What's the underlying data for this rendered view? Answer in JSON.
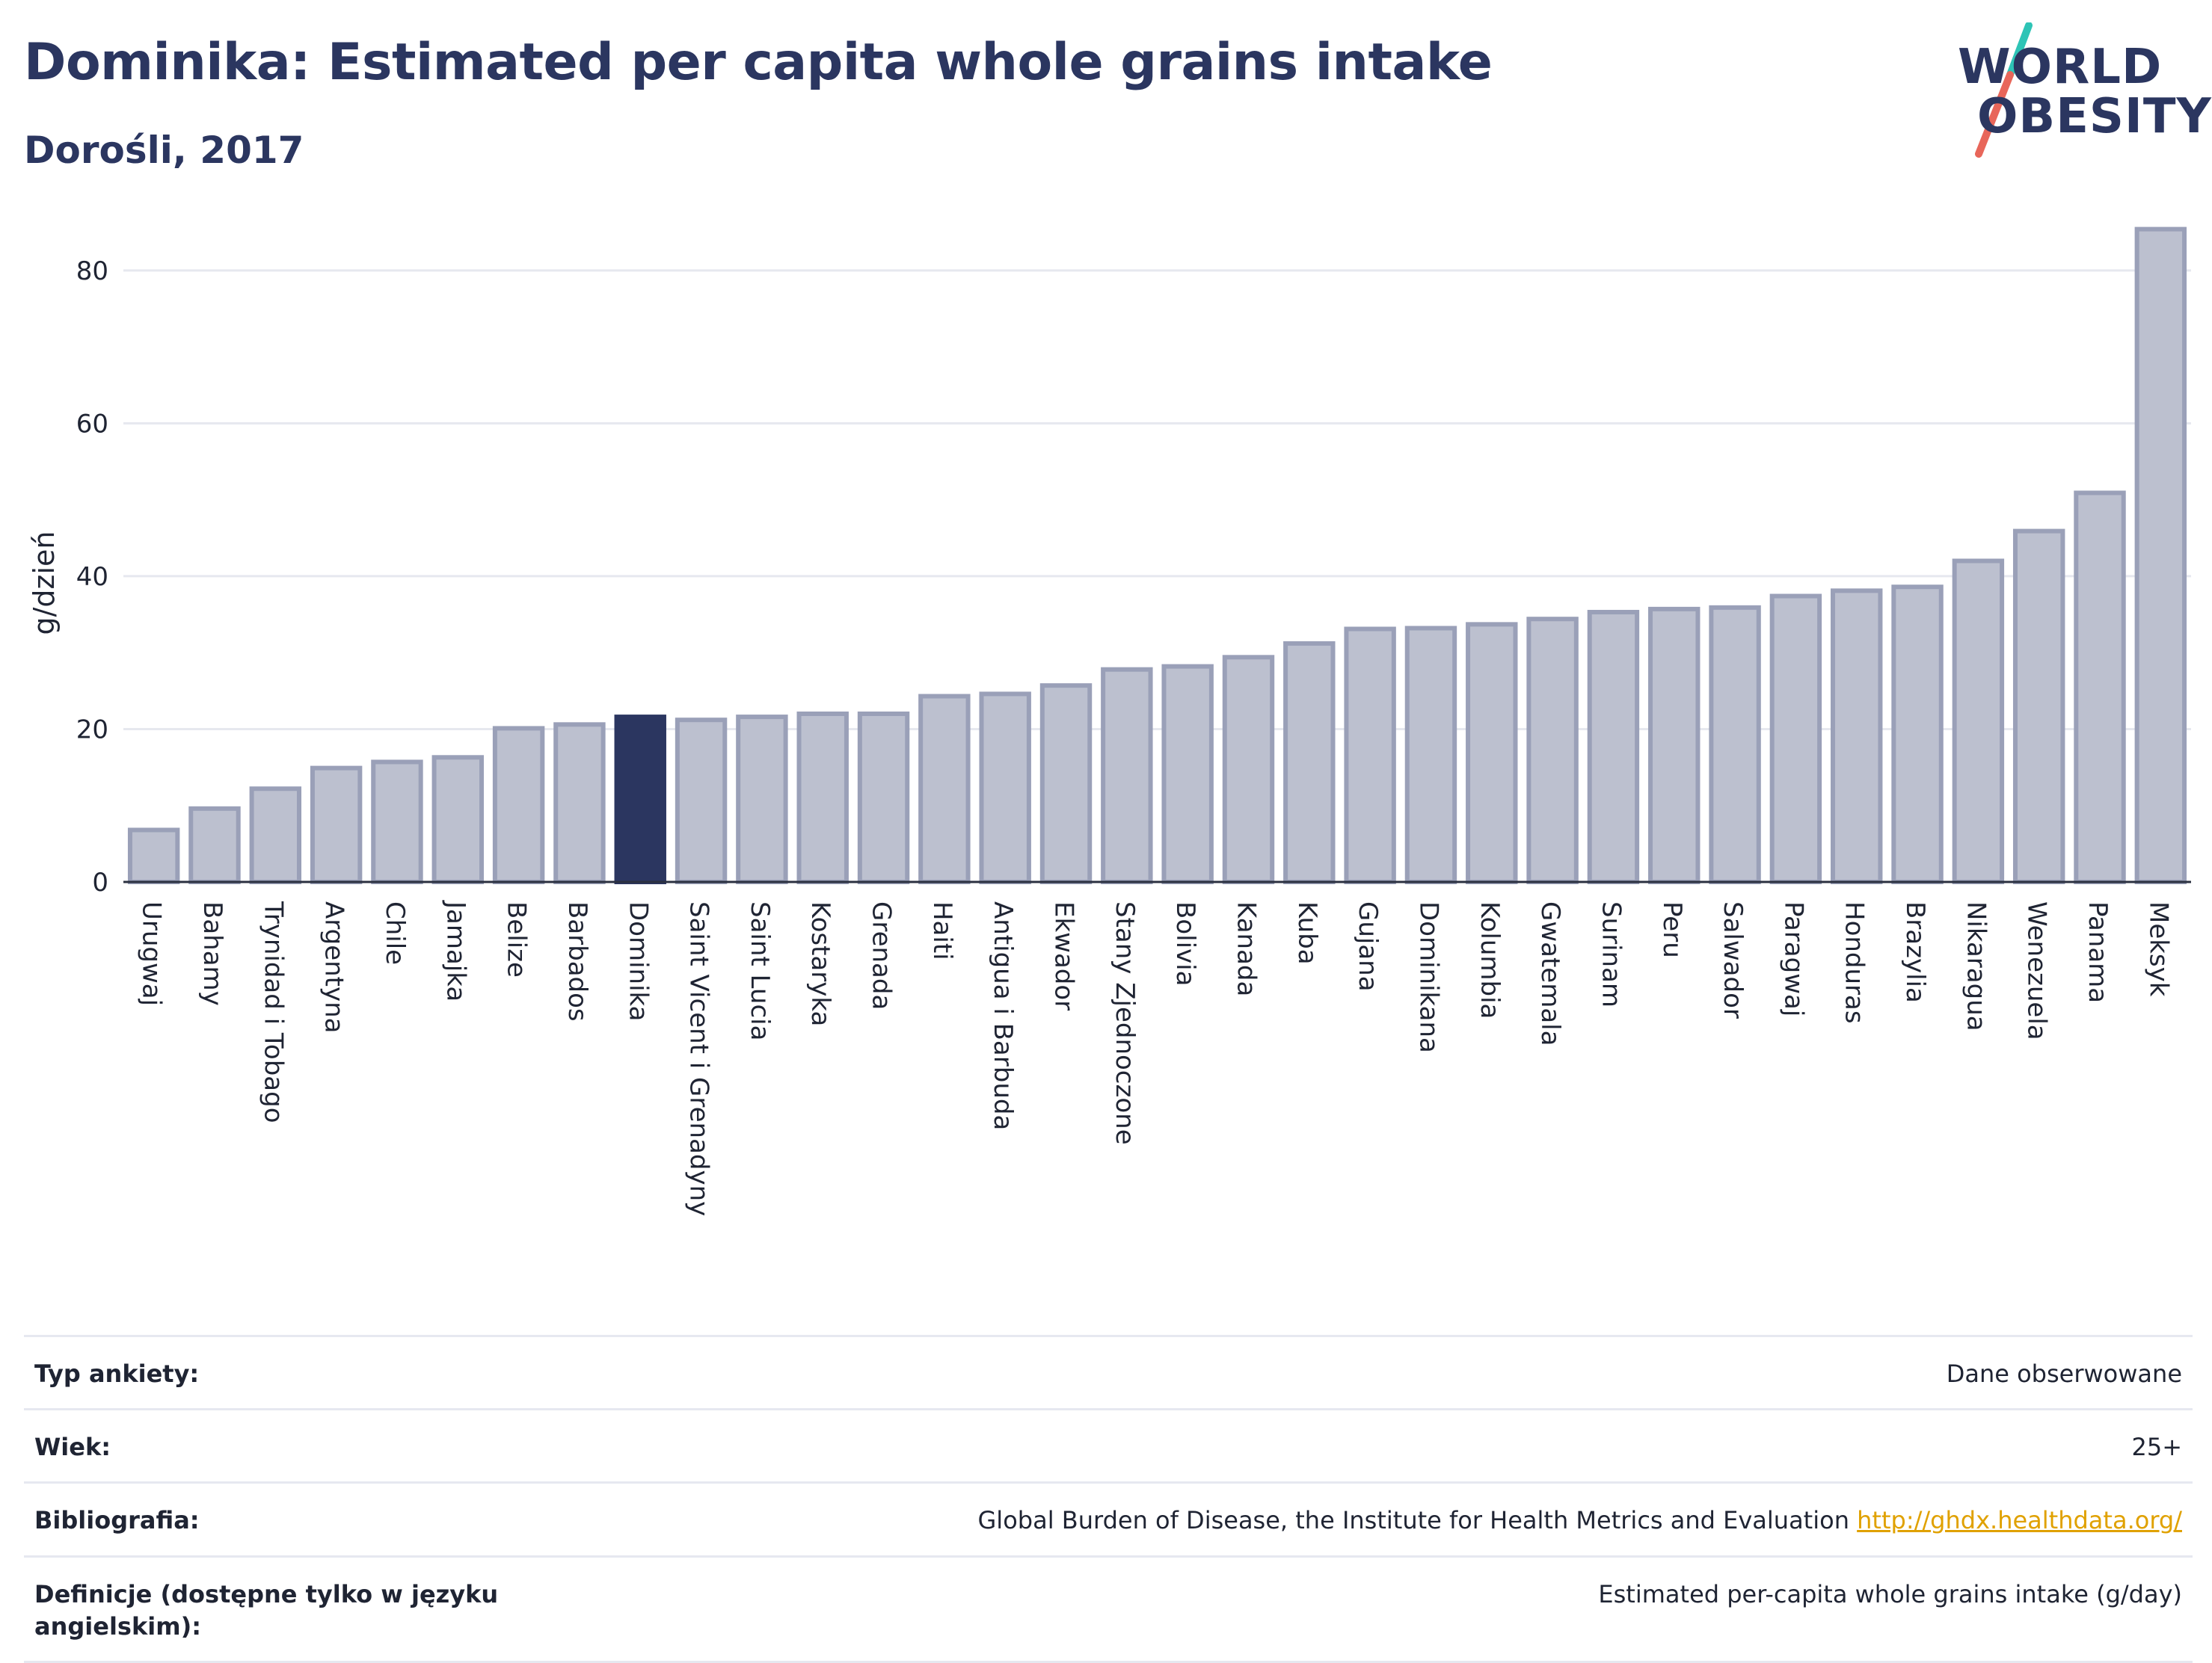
{
  "header": {
    "title": "Dominika: Estimated per capita whole grains intake",
    "subtitle": "Dorośli, 2017"
  },
  "logo": {
    "line1": "WORLD",
    "line2": "OBESITY",
    "colors": {
      "text": "#2b3660",
      "slash_top": "#2ec4b6",
      "slash_bottom": "#e8665a"
    }
  },
  "chart_data": {
    "type": "bar",
    "ylabel": "g/dzień",
    "ylim": [
      0,
      88
    ],
    "yticks": [
      0,
      20,
      40,
      60,
      80
    ],
    "grid": true,
    "highlight": "Dominika",
    "colors": {
      "bar": "#bcc0cf",
      "bar_edge": "#9aa0b8",
      "highlight": "#2b3660",
      "grid": "#e6e8ef"
    },
    "categories": [
      "Urugwaj",
      "Bahamy",
      "Trynidad i Tobago",
      "Argentyna",
      "Chile",
      "Jamajka",
      "Belize",
      "Barbados",
      "Dominika",
      "Saint Vicent i Grenadyny",
      "Saint Lucia",
      "Kostaryka",
      "Grenada",
      "Haiti",
      "Antigua i Barbuda",
      "Ekwador",
      "Stany Zjednoczone",
      "Bolivia",
      "Kanada",
      "Kuba",
      "Gujana",
      "Dominikana",
      "Kolumbia",
      "Gwatemala",
      "Surinam",
      "Peru",
      "Salwador",
      "Paragwaj",
      "Honduras",
      "Brazylia",
      "Nikaragua",
      "Wenezuela",
      "Panama",
      "Meksyk"
    ],
    "values": [
      6.8,
      9.6,
      12.2,
      14.9,
      15.7,
      16.3,
      20.1,
      20.6,
      21.6,
      21.2,
      21.6,
      22.0,
      22.0,
      24.3,
      24.6,
      25.7,
      27.8,
      28.2,
      29.4,
      31.2,
      33.1,
      33.2,
      33.7,
      34.4,
      35.3,
      35.7,
      35.9,
      37.4,
      38.1,
      38.6,
      42.0,
      45.9,
      50.9,
      85.4
    ]
  },
  "info": [
    {
      "key": "Typ ankiety:",
      "value": "Dane obserwowane"
    },
    {
      "key": "Wiek:",
      "value": "25+"
    },
    {
      "key": "Bibliografia:",
      "value": "Global Burden of Disease, the Institute for Health Metrics and Evaluation",
      "link": "http://ghdx.healthdata.org/"
    },
    {
      "key": "Definicje (dostępne tylko w języku angielskim):",
      "value": "Estimated per-capita whole grains intake (g/day)"
    }
  ]
}
